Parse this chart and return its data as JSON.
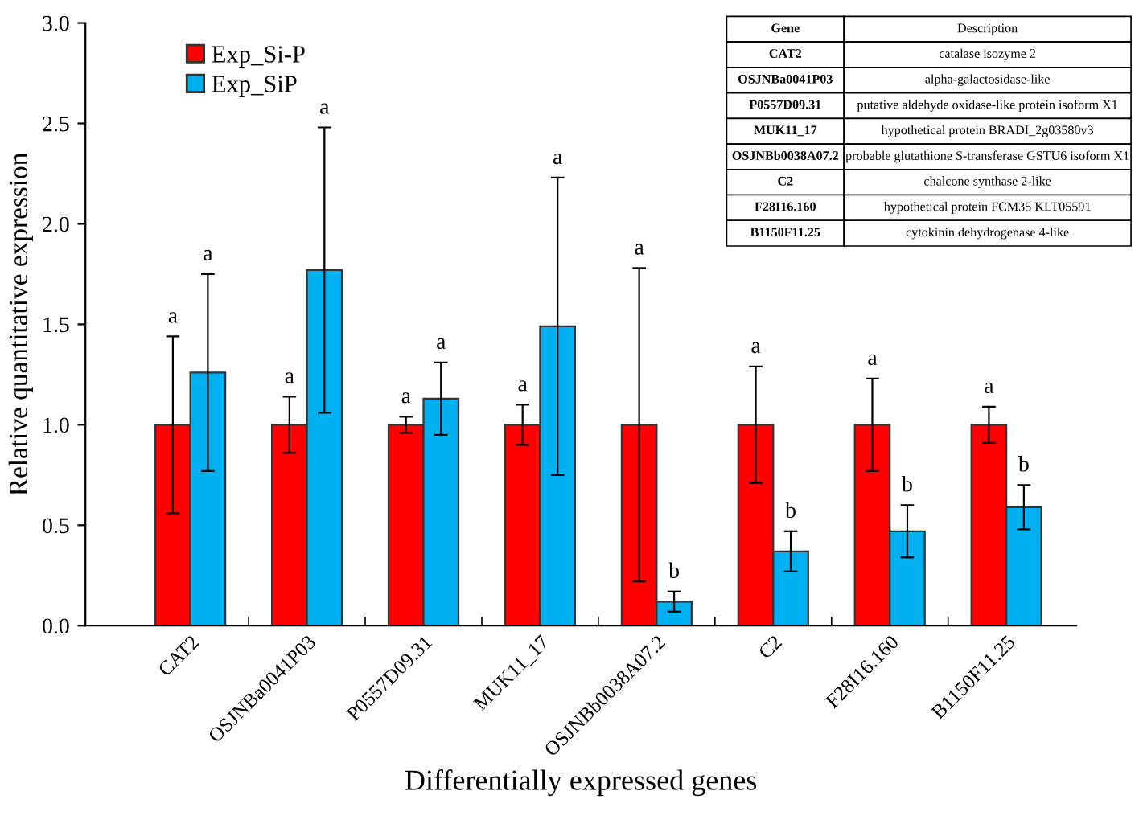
{
  "chart_data": {
    "type": "bar",
    "xlabel": "Differentially expressed genes",
    "ylabel": "Relative quantitative expression",
    "categories": [
      "CAT2",
      "OSJNBa0041P03",
      "P0557D09.31",
      "MUK11_17",
      "OSJNBb0038A07.2",
      "C2",
      "F28I16.160",
      "B1150F11.25"
    ],
    "series": [
      {
        "name": "Exp_Si-P",
        "color": "#ff0000",
        "values": [
          1.0,
          1.0,
          1.0,
          1.0,
          1.0,
          1.0,
          1.0,
          1.0
        ],
        "errors": [
          0.44,
          0.14,
          0.04,
          0.1,
          0.78,
          0.29,
          0.23,
          0.09
        ]
      },
      {
        "name": "Exp_SiP",
        "color": "#00b0f0",
        "values": [
          1.26,
          1.77,
          1.13,
          1.49,
          0.12,
          0.37,
          0.47,
          0.59
        ],
        "errors": [
          0.49,
          0.71,
          0.18,
          0.74,
          0.05,
          0.1,
          0.13,
          0.11
        ]
      }
    ],
    "ylim": [
      0,
      3
    ],
    "yticks": [
      {
        "value": 0,
        "label": "0.0"
      },
      {
        "value": 0.5,
        "label": "0.5"
      },
      {
        "value": 1,
        "label": "1.0"
      },
      {
        "value": 1.5,
        "label": "1.5"
      },
      {
        "value": 2,
        "label": "2.0"
      },
      {
        "value": 2.5,
        "label": "2.5"
      },
      {
        "value": 3,
        "label": "3.0"
      }
    ],
    "grid": false,
    "legend": "top left",
    "annotations": [
      "a",
      "a",
      "a",
      "a",
      "a",
      "a",
      "a",
      "a",
      "a",
      "a",
      "a",
      "a",
      "b",
      "b",
      "b",
      "b",
      "Gene",
      "Description",
      "CAT2",
      "catalase isozyme 2",
      "OSJNBa0041P03",
      "alpha-galactosidase-like",
      "P0557D09.31",
      "putative aldehyde oxidase-like protein isoform X1",
      "MUK11_17",
      "hypothetical protein BRADI_2g03580v3",
      "OSJNBb0038A07.2",
      "probable glutathione S-transferase GSTU6 isoform X1",
      "C2",
      "chalcone synthase 2-like",
      "F28I16.160",
      "hypothetical protein FCM35 KLT05591",
      "B1150F11.25",
      "cytokinin dehydrogenase 4-like"
    ]
  }
}
